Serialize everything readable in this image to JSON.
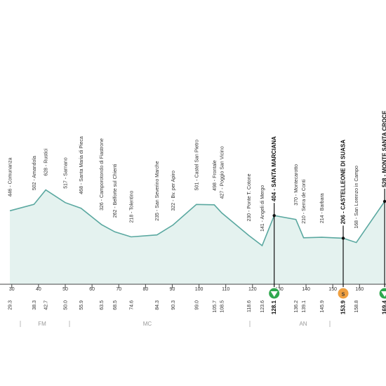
{
  "chart_data": {
    "type": "profile",
    "xlim": [
      25.6,
      169.9
    ],
    "xticks": [
      30,
      40,
      50,
      60,
      70,
      80,
      90,
      100,
      110,
      120,
      130,
      140,
      150,
      160
    ],
    "color": "#5aa8a0",
    "fill": "#e4f2ef",
    "waypoints": {
      "km": [
        29.3,
        38.3,
        42.7,
        50.0,
        55.9,
        63.5,
        68.5,
        74.6,
        84.3,
        90.3,
        99.0,
        105.7,
        108.5,
        118.6,
        123.6,
        128.1,
        136.2,
        139.1,
        145.9,
        153.9,
        158.8,
        169.4
      ],
      "km_labels": [
        "29.3",
        "38.3",
        "42.7",
        "50.0",
        "55.9",
        "63.5",
        "68.5",
        "74.6",
        "84.3",
        "90.3",
        "99.0",
        "105.7",
        "108.5",
        "118.6",
        "123.6",
        "128.1",
        "136.2",
        "139.1",
        "145.9",
        "153.9",
        "158.8",
        "169.4"
      ],
      "alt": [
        446,
        502,
        628,
        517,
        468,
        326,
        262,
        218,
        235,
        322,
        501,
        498,
        427,
        230,
        141,
        404,
        370,
        210,
        214,
        206,
        168,
        528
      ],
      "labels": [
        "446 - Comunanza",
        "502 - Amandola",
        "628 - Rustici",
        "517 - Sarnano",
        "468 - Santa Maria di Pieca",
        "326 - Camporotondo di Fiastrone",
        "262 - Belforte sul Chienti",
        "218 - Tolentino",
        "235 - San Severino Marche",
        "322 - Bv. per Apiro",
        "501 - Castel San Pietro",
        "498 - Frontale",
        "427 - Poggio San Vicino",
        "230 - Ponte T. Cotone",
        "141 - Angeli di Mergo",
        "404 - SANTA MARCIANA",
        "370 - Montecarotto",
        "210 - Serra de Conti",
        "214 - Barbara",
        "206 - CASTELLEONE DI SUASA",
        "168 - San Lorenzo in Campo",
        "528 - MONTE SANTA CROCE"
      ],
      "bold": [
        false,
        false,
        false,
        false,
        false,
        false,
        false,
        false,
        false,
        false,
        false,
        false,
        false,
        false,
        false,
        true,
        false,
        false,
        false,
        true,
        false,
        true
      ]
    },
    "zones": [
      "FM",
      "MC",
      "AN"
    ],
    "sprint_symbol": "S"
  }
}
